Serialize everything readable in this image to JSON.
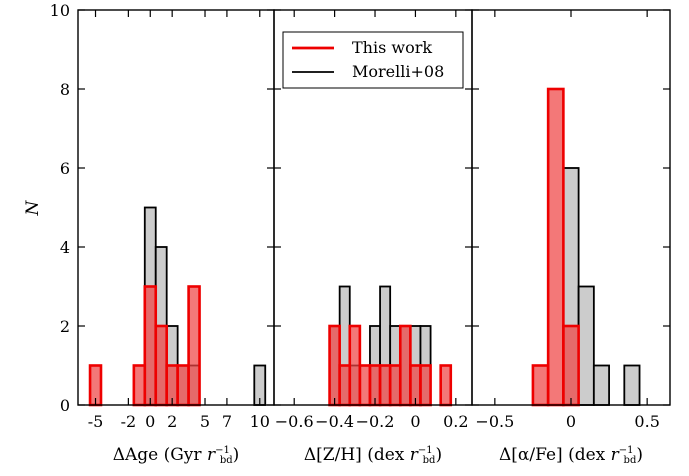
{
  "chart_data": {
    "type": "histogram",
    "ylabel": "N",
    "ylim": [
      0,
      10
    ],
    "yticks": [
      0,
      2,
      4,
      6,
      8,
      10
    ],
    "colors": {
      "this_work_edge": "#ee0000",
      "this_work_fill": "#ee4444",
      "morelli_edge": "#000000",
      "morelli_fill": "#cccccc"
    },
    "legend": {
      "position": "top-left of middle panel",
      "entries": [
        {
          "label": "This work",
          "color": "#ee0000"
        },
        {
          "label": "Morelli+08",
          "color": "#000000"
        }
      ]
    },
    "panels": [
      {
        "id": "age",
        "xlabel": {
          "delta": "Δ",
          "main": "Age (Gyr ",
          "r": "r",
          "sub": "bd",
          "sup": "−1",
          "close": ")"
        },
        "xlim": [
          -6.6,
          11.3
        ],
        "xticks": [
          {
            "value": -5,
            "label": "-5"
          },
          {
            "value": -2,
            "label": "-2"
          },
          {
            "value": 0,
            "label": "0"
          },
          {
            "value": 2,
            "label": "2"
          },
          {
            "value": 5,
            "label": "5"
          },
          {
            "value": 7,
            "label": "7"
          },
          {
            "value": 10,
            "label": "10"
          }
        ],
        "series": [
          {
            "name": "Morelli+08",
            "bins": [
              {
                "x0": -0.5,
                "x1": 0.5,
                "count": 5
              },
              {
                "x0": 0.5,
                "x1": 1.5,
                "count": 4
              },
              {
                "x0": 1.5,
                "x1": 2.5,
                "count": 2
              },
              {
                "x0": 2.5,
                "x1": 3.5,
                "count": 1
              },
              {
                "x0": 3.5,
                "x1": 4.5,
                "count": 1
              },
              {
                "x0": 9.5,
                "x1": 10.5,
                "count": 1
              }
            ]
          },
          {
            "name": "This work",
            "bins": [
              {
                "x0": -5.5,
                "x1": -4.5,
                "count": 1
              },
              {
                "x0": -1.5,
                "x1": -0.5,
                "count": 1
              },
              {
                "x0": -0.5,
                "x1": 0.5,
                "count": 3
              },
              {
                "x0": 0.5,
                "x1": 1.5,
                "count": 2
              },
              {
                "x0": 1.5,
                "x1": 2.5,
                "count": 1
              },
              {
                "x0": 2.5,
                "x1": 3.5,
                "count": 1
              },
              {
                "x0": 3.5,
                "x1": 4.5,
                "count": 3
              }
            ]
          }
        ]
      },
      {
        "id": "zh",
        "xlabel": {
          "delta": "Δ",
          "main": "[Z/H] (dex ",
          "r": "r",
          "sub": "bd",
          "sup": "−1",
          "close": ")"
        },
        "xlim": [
          -0.7,
          0.28
        ],
        "xticks": [
          {
            "value": -0.6,
            "label": "−0.6"
          },
          {
            "value": -0.4,
            "label": "−0.4"
          },
          {
            "value": -0.2,
            "label": "−0.2"
          },
          {
            "value": 0,
            "label": "0"
          },
          {
            "value": 0.2,
            "label": "0.2"
          }
        ],
        "series": [
          {
            "name": "Morelli+08",
            "bins": [
              {
                "x0": -0.425,
                "x1": -0.375,
                "count": 2
              },
              {
                "x0": -0.375,
                "x1": -0.325,
                "count": 3
              },
              {
                "x0": -0.325,
                "x1": -0.275,
                "count": 1
              },
              {
                "x0": -0.225,
                "x1": -0.175,
                "count": 2
              },
              {
                "x0": -0.175,
                "x1": -0.125,
                "count": 3
              },
              {
                "x0": -0.125,
                "x1": -0.075,
                "count": 2
              },
              {
                "x0": -0.075,
                "x1": -0.025,
                "count": 2
              },
              {
                "x0": -0.025,
                "x1": 0.025,
                "count": 2
              },
              {
                "x0": 0.025,
                "x1": 0.075,
                "count": 2
              }
            ]
          },
          {
            "name": "This work",
            "bins": [
              {
                "x0": -0.425,
                "x1": -0.375,
                "count": 2
              },
              {
                "x0": -0.375,
                "x1": -0.325,
                "count": 1
              },
              {
                "x0": -0.325,
                "x1": -0.275,
                "count": 2
              },
              {
                "x0": -0.275,
                "x1": -0.225,
                "count": 1
              },
              {
                "x0": -0.225,
                "x1": -0.175,
                "count": 1
              },
              {
                "x0": -0.175,
                "x1": -0.125,
                "count": 1
              },
              {
                "x0": -0.125,
                "x1": -0.075,
                "count": 1
              },
              {
                "x0": -0.075,
                "x1": -0.025,
                "count": 2
              },
              {
                "x0": -0.025,
                "x1": 0.025,
                "count": 1
              },
              {
                "x0": 0.025,
                "x1": 0.075,
                "count": 1
              },
              {
                "x0": 0.125,
                "x1": 0.175,
                "count": 1
              }
            ]
          }
        ]
      },
      {
        "id": "alpha",
        "xlabel": {
          "delta": "Δ",
          "main": "[α/Fe] (dex ",
          "r": "r",
          "sub": "bd",
          "sup": "−1",
          "close": ")"
        },
        "xlim": [
          -0.65,
          0.65
        ],
        "xticks": [
          {
            "value": -0.5,
            "label": "−0.5"
          },
          {
            "value": 0,
            "label": "0"
          },
          {
            "value": 0.5,
            "label": "0.5"
          }
        ],
        "series": [
          {
            "name": "Morelli+08",
            "bins": [
              {
                "x0": -0.05,
                "x1": 0.05,
                "count": 6
              },
              {
                "x0": 0.05,
                "x1": 0.15,
                "count": 3
              },
              {
                "x0": 0.15,
                "x1": 0.25,
                "count": 1
              },
              {
                "x0": 0.25,
                "x1": 0.35,
                "count": 0
              },
              {
                "x0": 0.35,
                "x1": 0.45,
                "count": 1
              }
            ]
          },
          {
            "name": "This work",
            "bins": [
              {
                "x0": -0.25,
                "x1": -0.15,
                "count": 1
              },
              {
                "x0": -0.15,
                "x1": -0.05,
                "count": 8
              },
              {
                "x0": -0.05,
                "x1": 0.05,
                "count": 2
              }
            ]
          }
        ]
      }
    ]
  }
}
